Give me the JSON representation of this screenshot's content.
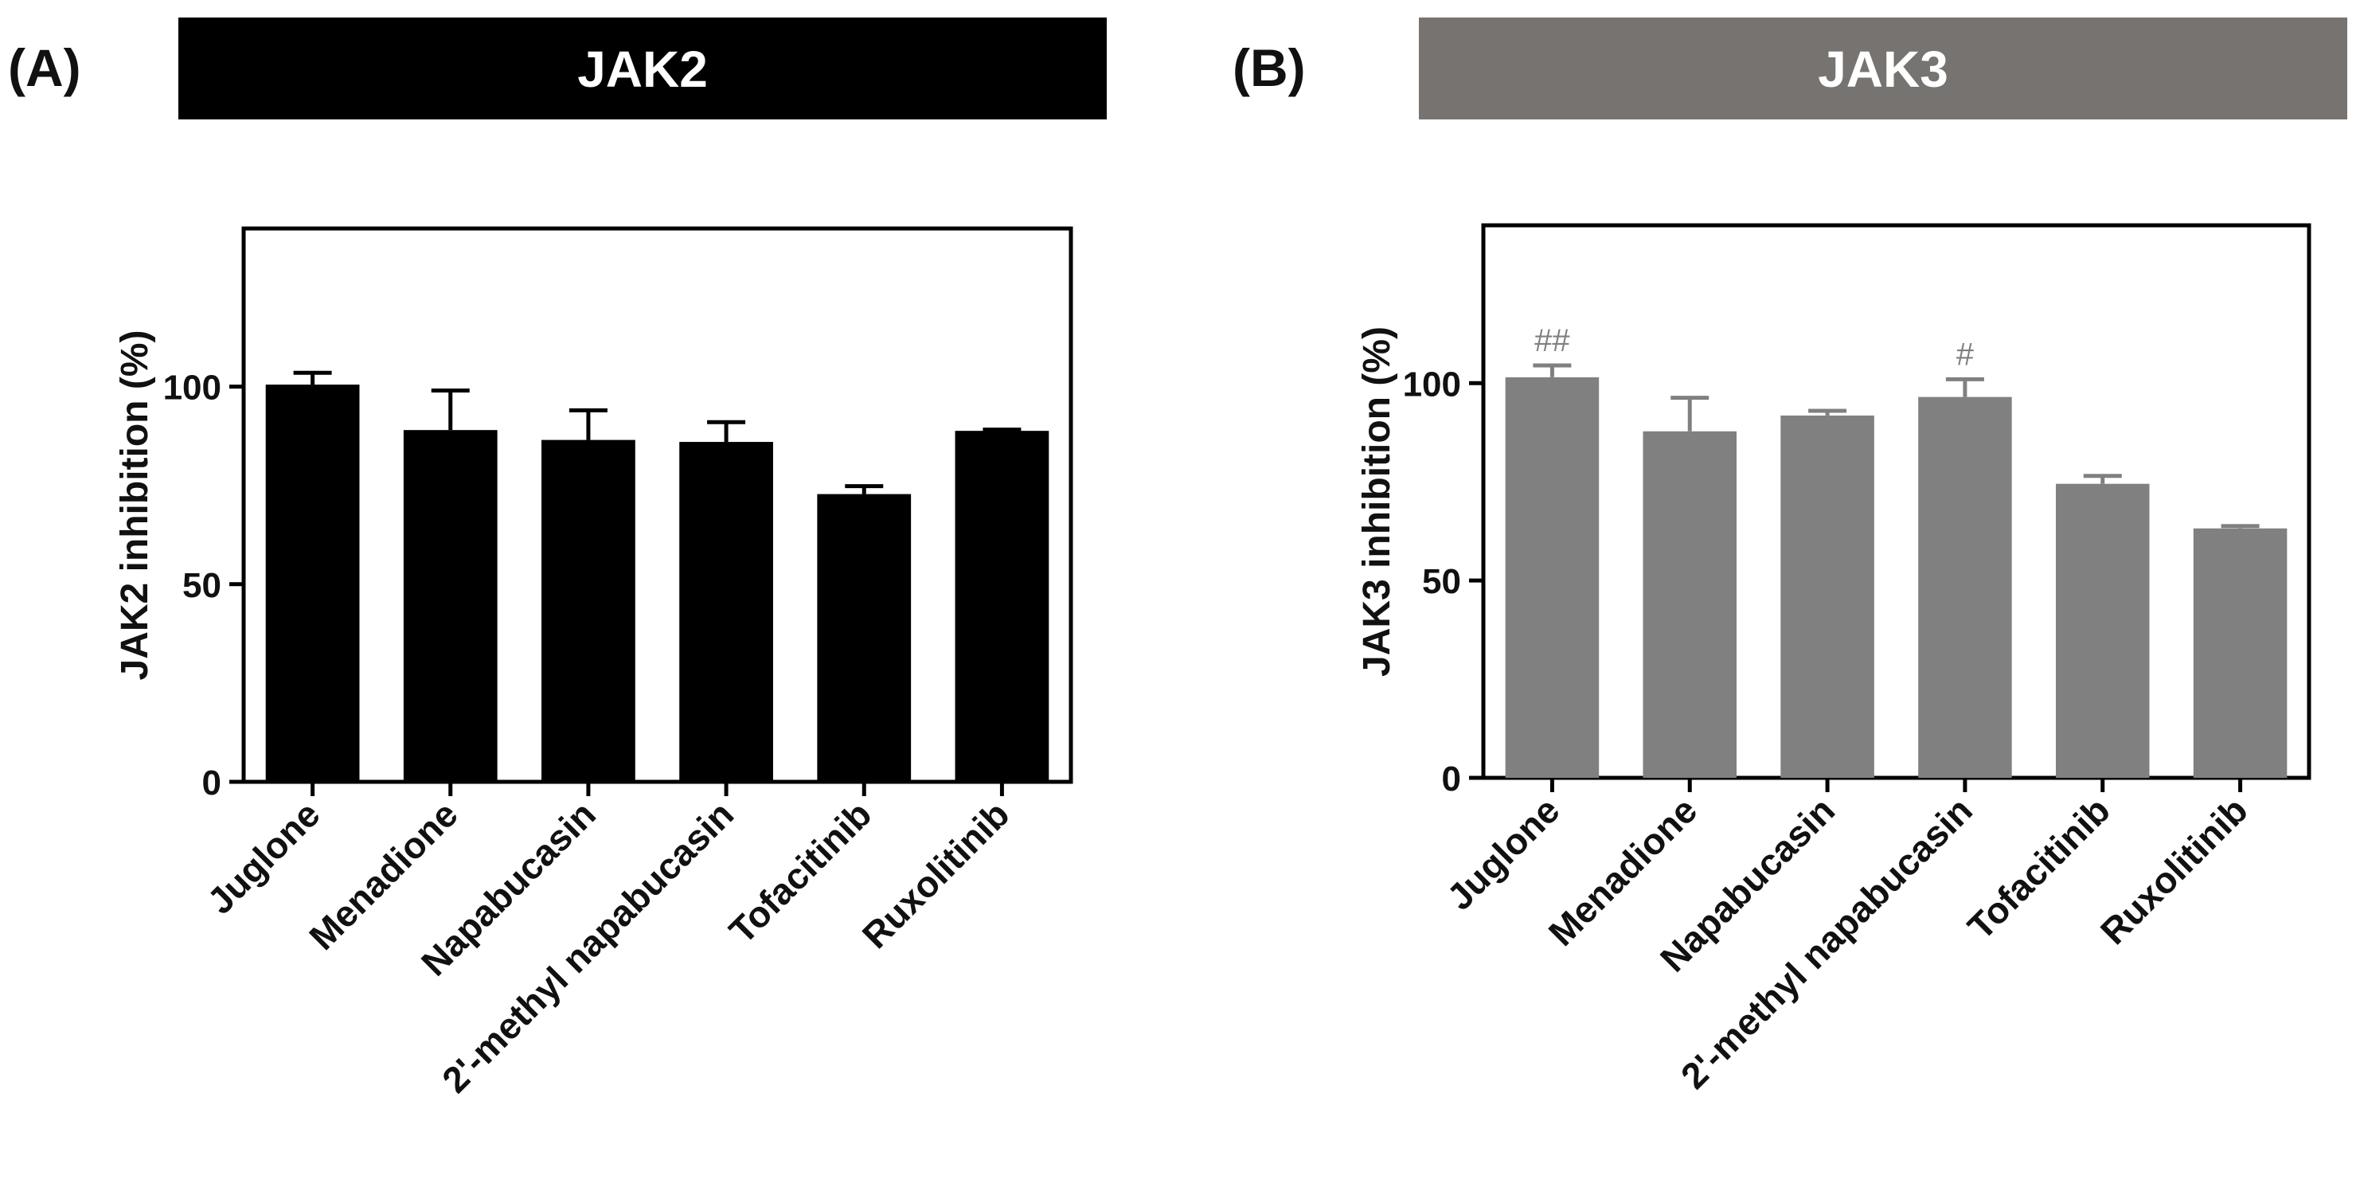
{
  "colors": {
    "jak2_bar": "#000000",
    "jak3_bar": "#808080",
    "jak2_banner": "#000000",
    "jak3_banner": "#777370",
    "banner_text": "#ffffff",
    "axis": "#000000"
  },
  "chart_data": [
    {
      "type": "bar",
      "panel_letter": "(A)",
      "title": "JAK2",
      "xlabel": "",
      "ylabel": "JAK2 inhibition (%)",
      "ylim": [
        0,
        140
      ],
      "yticks": [
        0,
        50,
        100
      ],
      "grid": false,
      "categories": [
        "Juglone",
        "Menadione",
        "Napabucasin",
        "2'-methyl napabucasin",
        "Tofacitinib",
        "Ruxolitinib"
      ],
      "values": [
        100.5,
        89,
        86.5,
        86,
        72.8,
        88.8
      ],
      "errors": [
        3,
        10,
        7.5,
        5,
        2,
        0.3
      ],
      "annotations": [
        "",
        "",
        "",
        "",
        "",
        ""
      ]
    },
    {
      "type": "bar",
      "panel_letter": "(B)",
      "title": "JAK3",
      "xlabel": "",
      "ylabel": "JAK3 inhibition (%)",
      "ylim": [
        0,
        140
      ],
      "yticks": [
        0,
        50,
        100
      ],
      "grid": false,
      "categories": [
        "Juglone",
        "Menadione",
        "Napabucasin",
        "2'-methyl napabucasin",
        "Tofacitinib",
        "Ruxolitinib"
      ],
      "values": [
        101.5,
        87.8,
        91.8,
        96.5,
        74.5,
        63.2
      ],
      "errors": [
        3,
        8.5,
        1.2,
        4.5,
        2,
        0.6
      ],
      "annotations": [
        "##",
        "",
        "",
        "#",
        "",
        ""
      ]
    }
  ]
}
